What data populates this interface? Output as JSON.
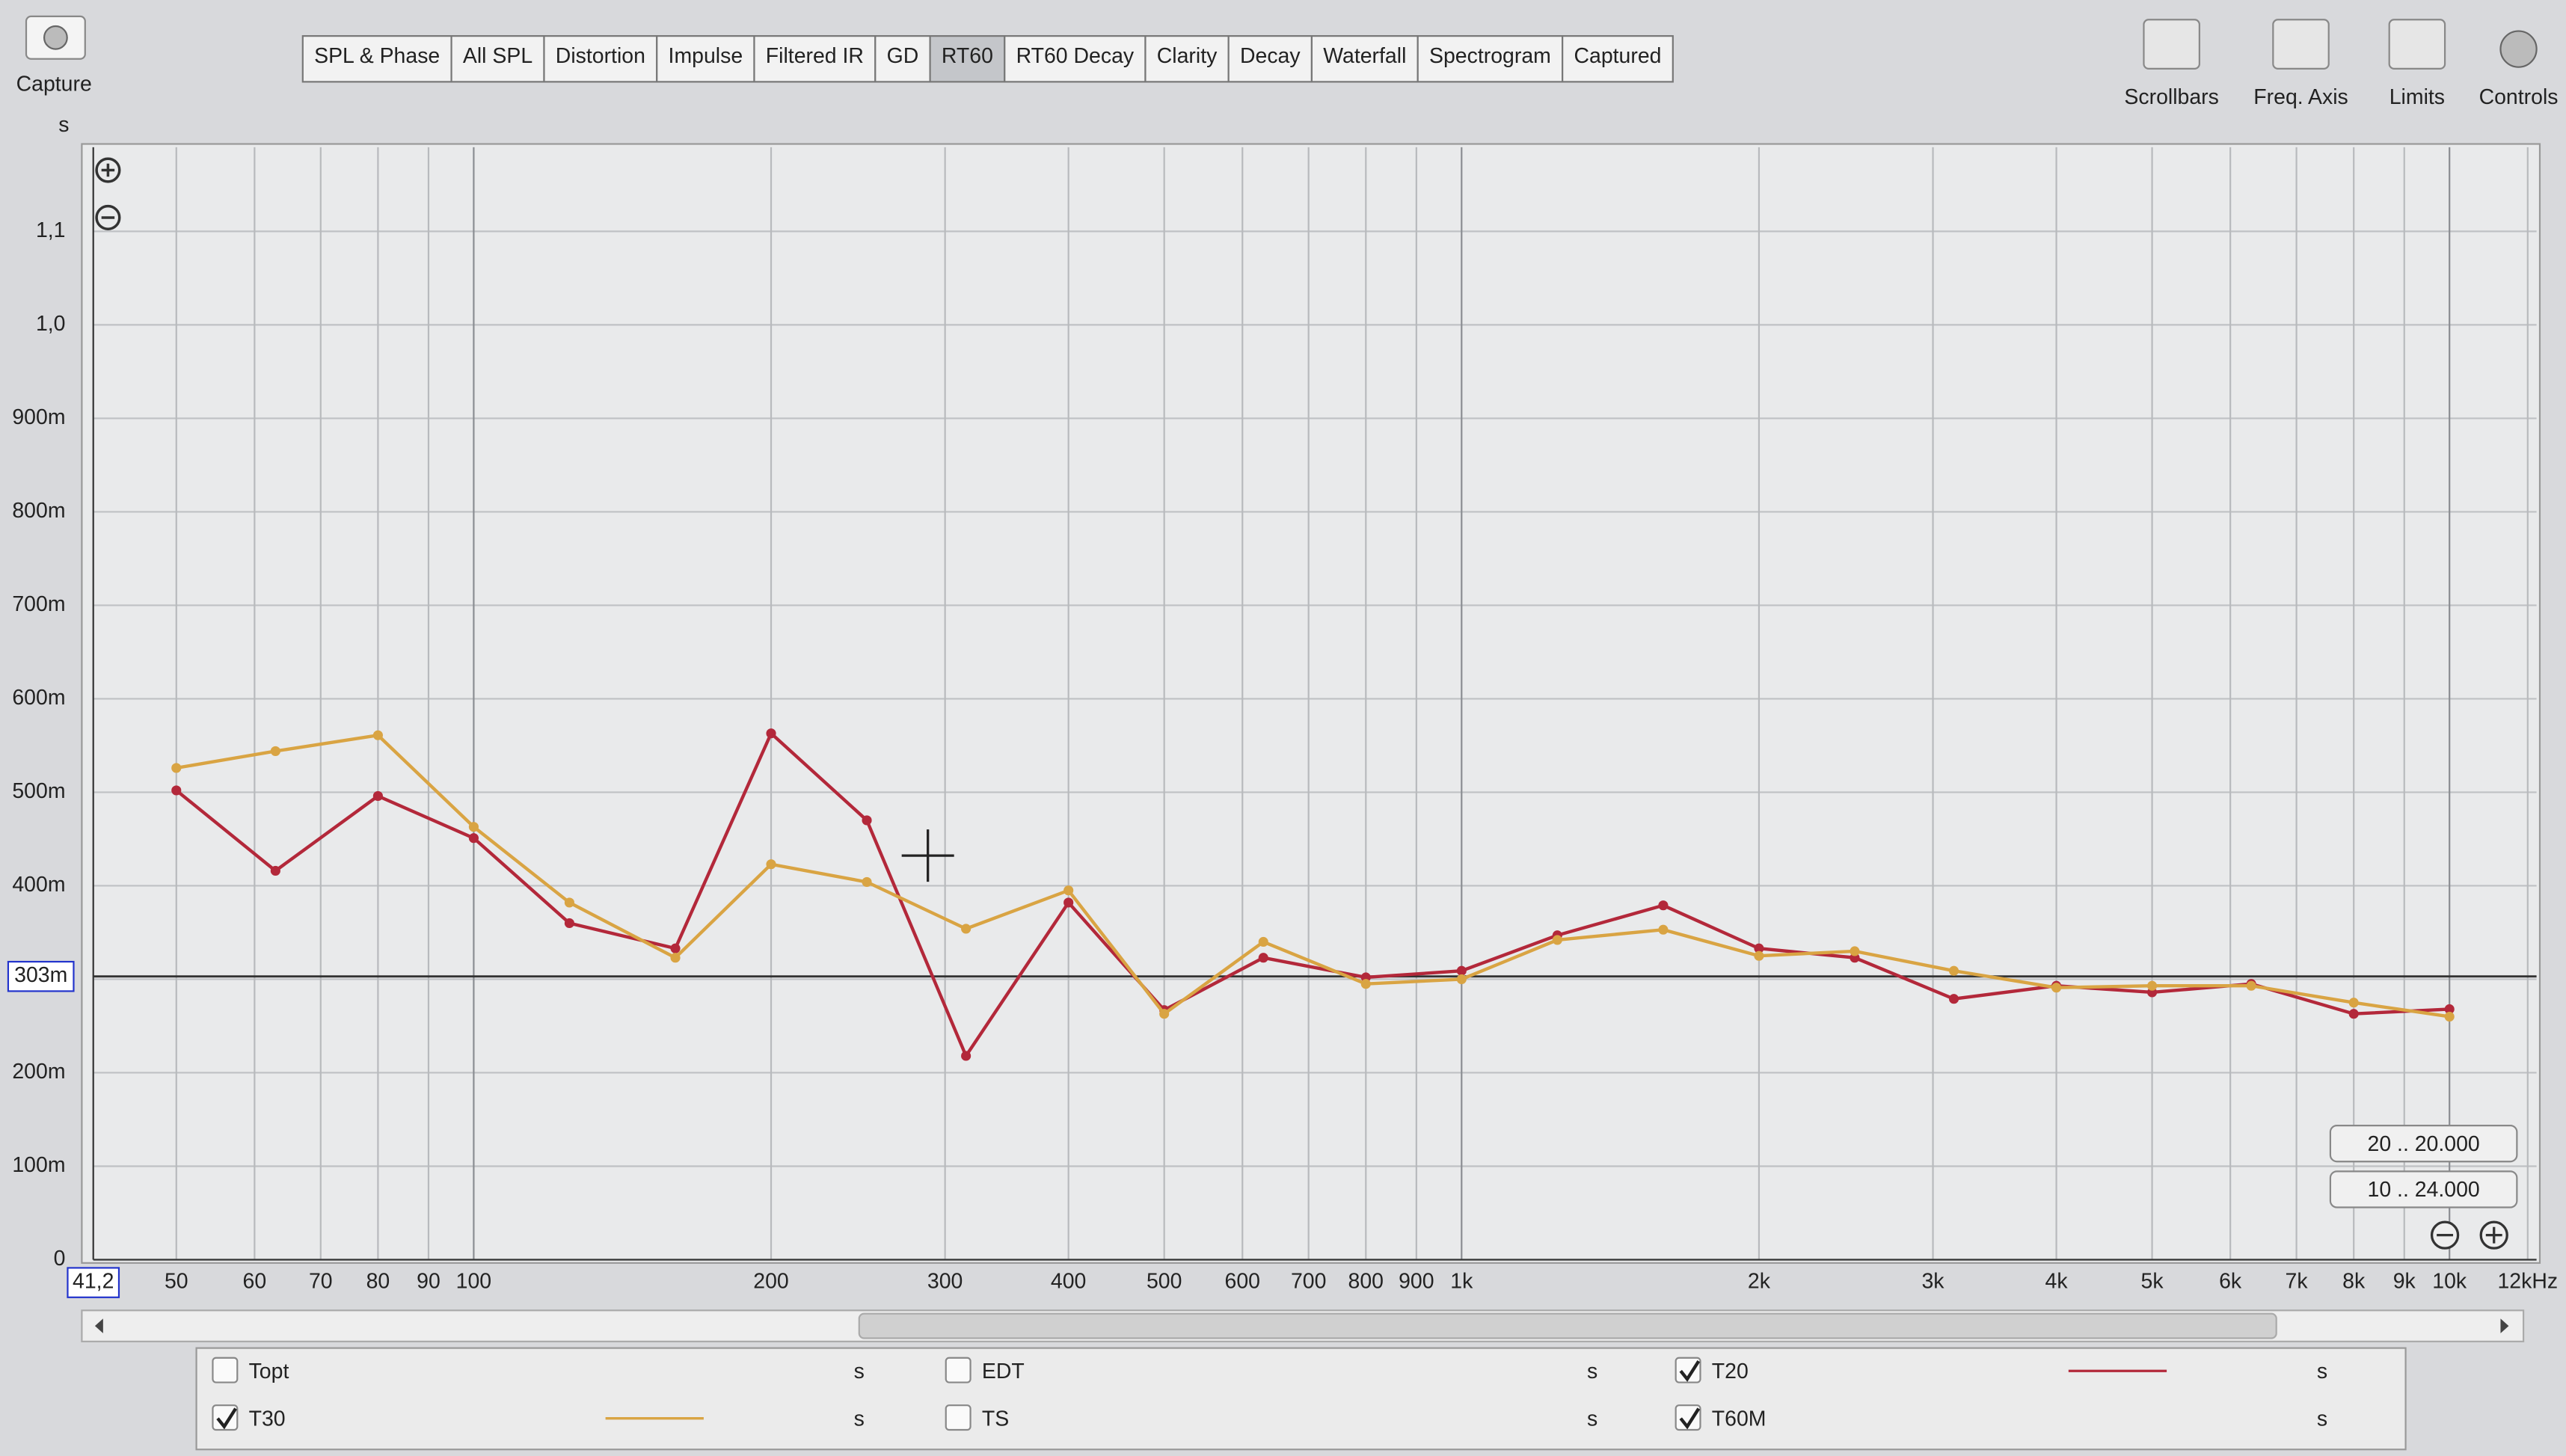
{
  "toolbar": {
    "capture": "Capture",
    "tabs": [
      "SPL & Phase",
      "All SPL",
      "Distortion",
      "Impulse",
      "Filtered IR",
      "GD",
      "RT60",
      "RT60 Decay",
      "Clarity",
      "Decay",
      "Waterfall",
      "Spectrogram",
      "Captured"
    ],
    "active_tab": "RT60",
    "tools": [
      "Scrollbars",
      "Freq. Axis",
      "Limits",
      "Controls"
    ]
  },
  "range_buttons": [
    "20 .. 20.000",
    "10 .. 24.000"
  ],
  "chart_data": {
    "type": "line",
    "y_unit": "s",
    "x_log": true,
    "grid": true,
    "xlim": [
      41.2,
      12250
    ],
    "xticks": [
      {
        "value": 41.2,
        "label": "41,2"
      },
      50,
      60,
      70,
      80,
      90,
      100,
      200,
      300,
      400,
      500,
      600,
      700,
      800,
      900,
      {
        "value": 1000,
        "label": "1k"
      },
      {
        "value": 2000,
        "label": "2k"
      },
      {
        "value": 3000,
        "label": "3k"
      },
      {
        "value": 4000,
        "label": "4k"
      },
      {
        "value": 5000,
        "label": "5k"
      },
      {
        "value": 6000,
        "label": "6k"
      },
      {
        "value": 7000,
        "label": "7k"
      },
      {
        "value": 8000,
        "label": "8k"
      },
      {
        "value": 9000,
        "label": "9k"
      },
      {
        "value": 10000,
        "label": "10k"
      },
      {
        "value": 12000,
        "label": "12kHz"
      }
    ],
    "ylim": [
      0,
      1.19
    ],
    "yticks": [
      0,
      {
        "value": 0.1,
        "label": "100m"
      },
      {
        "value": 0.2,
        "label": "200m"
      },
      {
        "value": 0.3,
        "label": "300m"
      },
      {
        "value": 0.4,
        "label": "400m"
      },
      {
        "value": 0.5,
        "label": "500m"
      },
      {
        "value": 0.6,
        "label": "600m"
      },
      {
        "value": 0.7,
        "label": "700m"
      },
      {
        "value": 0.8,
        "label": "800m"
      },
      {
        "value": 0.9,
        "label": "900m"
      },
      {
        "value": 1.0,
        "label": "1,0"
      },
      {
        "value": 1.1,
        "label": "1,1"
      }
    ],
    "cursor_line": {
      "value": 0.303,
      "label": "303m"
    },
    "x": [
      50,
      63,
      80,
      100,
      125,
      160,
      200,
      250,
      315,
      400,
      500,
      630,
      800,
      1000,
      1250,
      1600,
      2000,
      2500,
      3150,
      4000,
      5000,
      6300,
      8000,
      10000
    ],
    "series": [
      {
        "name": "T20",
        "color": "#b3283a",
        "checked": true,
        "unit": "s",
        "values": [
          0.502,
          0.416,
          0.496,
          0.451,
          0.36,
          0.333,
          0.563,
          0.47,
          0.218,
          0.382,
          0.267,
          0.323,
          0.302,
          0.309,
          0.347,
          0.379,
          0.333,
          0.323,
          0.279,
          0.293,
          0.286,
          0.295,
          0.263,
          0.268
        ]
      },
      {
        "name": "T30",
        "color": "#d9a443",
        "checked": true,
        "unit": "s",
        "values": [
          0.526,
          0.544,
          0.561,
          0.463,
          0.382,
          0.323,
          0.423,
          0.404,
          0.354,
          0.395,
          0.263,
          0.34,
          0.295,
          0.3,
          0.342,
          0.353,
          0.325,
          0.33,
          0.309,
          0.291,
          0.293,
          0.293,
          0.275,
          0.26
        ]
      }
    ]
  },
  "legend_panel": {
    "items": [
      {
        "label": "Topt",
        "color": "#5e9a5e",
        "checked": false,
        "unit": "s"
      },
      {
        "label": "EDT",
        "color": "#4aa3b3",
        "checked": false,
        "unit": "s"
      },
      {
        "label": "TS",
        "color": "#9a3fa3",
        "checked": false,
        "unit": "s"
      },
      {
        "label": "T60M",
        "color": "#b5b5b5",
        "checked": true,
        "unit": "s"
      }
    ]
  }
}
